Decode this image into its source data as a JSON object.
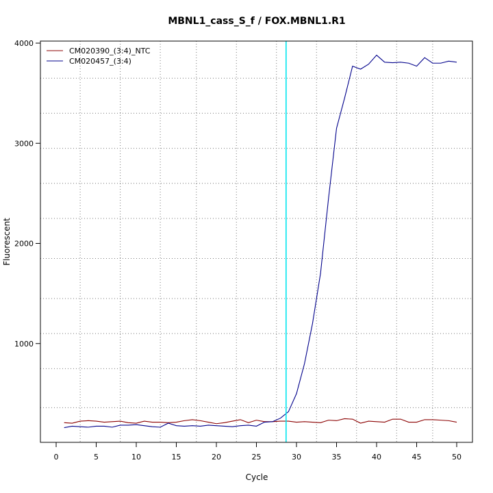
{
  "chart_data": {
    "type": "line",
    "title": "MBNL1_cass_S_f / FOX.MBNL1.R1",
    "xlabel": "Cycle",
    "ylabel": "Fluorescent",
    "xlim": [
      -2,
      52
    ],
    "ylim": [
      0,
      4000
    ],
    "x_ticks": [
      0,
      5,
      10,
      15,
      20,
      25,
      30,
      35,
      40,
      45,
      50
    ],
    "y_ticks": [
      1000,
      2000,
      3000,
      4000
    ],
    "grid": true,
    "vertical_grid_lines": [
      3,
      8,
      13,
      17.5,
      22.5,
      27.5,
      32.5,
      37.5,
      42.5,
      47
    ],
    "horizontal_grid_lines": [
      360,
      750,
      1100,
      1450,
      1850,
      2250,
      2600,
      2950,
      3300,
      3650
    ],
    "threshold_line": {
      "x": 28.7,
      "color": "#00e5ee"
    },
    "legend_position": "top-left",
    "x": [
      1,
      2,
      3,
      4,
      5,
      6,
      7,
      8,
      9,
      10,
      11,
      12,
      13,
      14,
      15,
      16,
      17,
      18,
      19,
      20,
      21,
      22,
      23,
      24,
      25,
      26,
      27,
      28,
      29,
      30,
      31,
      32,
      33,
      34,
      35,
      36,
      37,
      38,
      39,
      40,
      41,
      42,
      43,
      44,
      45,
      46,
      47,
      48,
      49,
      50
    ],
    "series": [
      {
        "name": "CM020390_(3:4)_NTC",
        "color": "#8b0000",
        "values": [
          210,
          205,
          225,
          230,
          225,
          215,
          220,
          225,
          210,
          205,
          225,
          215,
          215,
          210,
          215,
          230,
          240,
          230,
          215,
          200,
          210,
          225,
          240,
          210,
          235,
          220,
          220,
          225,
          225,
          215,
          220,
          215,
          210,
          235,
          230,
          250,
          245,
          205,
          225,
          220,
          215,
          245,
          245,
          215,
          215,
          240,
          240,
          235,
          230,
          215
        ]
      },
      {
        "name": "CM020457_(3:4)",
        "color": "#00008b",
        "values": [
          160,
          175,
          170,
          165,
          175,
          175,
          165,
          185,
          185,
          190,
          180,
          170,
          165,
          205,
          180,
          175,
          180,
          175,
          185,
          180,
          175,
          170,
          180,
          185,
          175,
          215,
          220,
          255,
          320,
          500,
          800,
          1200,
          1700,
          2450,
          3150,
          3450,
          3770,
          3740,
          3790,
          3880,
          3810,
          3805,
          3810,
          3800,
          3770,
          3855,
          3800,
          3800,
          3820,
          3810
        ]
      }
    ]
  }
}
